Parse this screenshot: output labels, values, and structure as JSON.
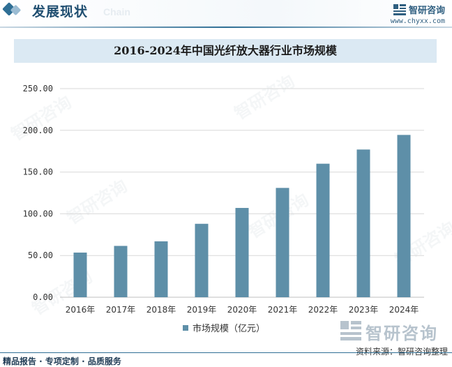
{
  "header": {
    "title": "发展现状",
    "subtitle": "Chain",
    "brand_name": "智研咨询",
    "brand_url": "www.chyxx.com"
  },
  "watermark_text": "智研咨询",
  "chart_data": {
    "type": "bar",
    "title": "2016-2024年中国光纤放大器行业市场规模",
    "categories": [
      "2016年",
      "2017年",
      "2018年",
      "2019年",
      "2020年",
      "2021年",
      "2022年",
      "2023年",
      "2024年"
    ],
    "series": [
      {
        "name": "市场规模（亿元）",
        "values": [
          53.5,
          61.5,
          67.0,
          88.0,
          107.0,
          131.0,
          160.0,
          177.0,
          194.5
        ]
      }
    ],
    "y_ticks": [
      "0.00",
      "50.00",
      "100.00",
      "150.00",
      "200.00",
      "250.00"
    ],
    "ylim": [
      0,
      250
    ],
    "grid": true,
    "legend_position": "bottom-center",
    "bar_color": "#5e8fa8"
  },
  "footer": {
    "brand_name": "智研咨询",
    "source": "资料来源：智研咨询整理",
    "tagline": "精品报告 · 专项定制 · 品质服务"
  }
}
